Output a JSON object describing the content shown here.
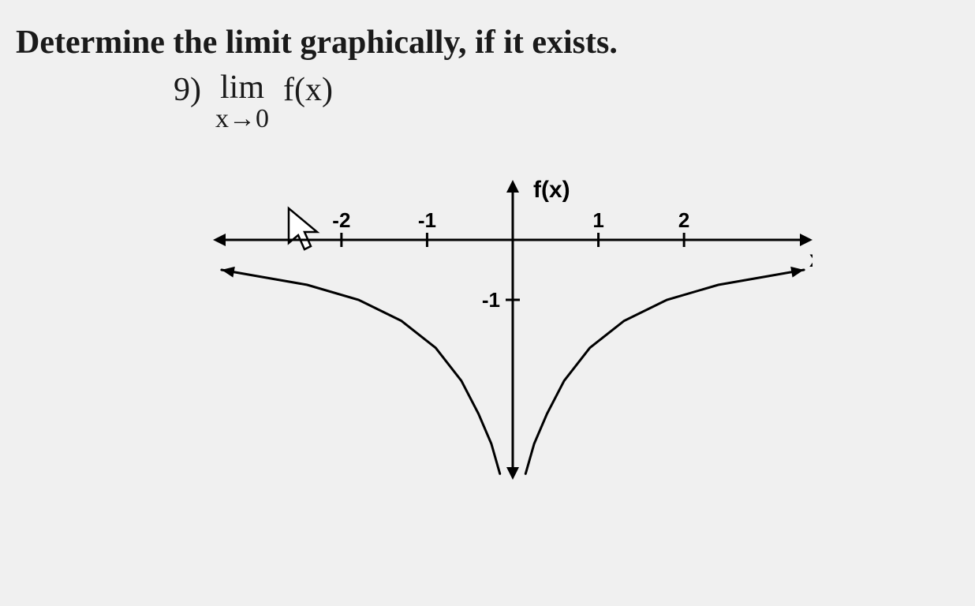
{
  "title": "Determine the limit graphically, if it exists.",
  "problem": {
    "number": "9)",
    "lim": "lim",
    "approach": "x→0",
    "func": "f(x)"
  },
  "graph": {
    "type": "function-curve",
    "y_label": "f(x)",
    "x_label": "x",
    "x_ticks": [
      -2,
      -1,
      1,
      2
    ],
    "y_ticks": [
      -1
    ],
    "x_range": [
      -3.5,
      3.5
    ],
    "y_range": [
      -4,
      1
    ],
    "colors": {
      "axis": "#000000",
      "curve": "#000000",
      "background": "#f0f0f0",
      "text": "#000000"
    },
    "stroke_width": {
      "axis": 3,
      "curve": 3,
      "tick": 3
    },
    "font": {
      "tick_size": 26,
      "label_size": 30,
      "weight": "bold"
    },
    "curve_left": [
      {
        "x": -3.4,
        "y": -0.5
      },
      {
        "x": -3.0,
        "y": -0.6
      },
      {
        "x": -2.4,
        "y": -0.75
      },
      {
        "x": -1.8,
        "y": -1.0
      },
      {
        "x": -1.3,
        "y": -1.35
      },
      {
        "x": -0.9,
        "y": -1.8
      },
      {
        "x": -0.6,
        "y": -2.35
      },
      {
        "x": -0.4,
        "y": -2.9
      },
      {
        "x": -0.25,
        "y": -3.4
      },
      {
        "x": -0.15,
        "y": -3.9
      }
    ],
    "curve_right": [
      {
        "x": 0.15,
        "y": -3.9
      },
      {
        "x": 0.25,
        "y": -3.4
      },
      {
        "x": 0.4,
        "y": -2.9
      },
      {
        "x": 0.6,
        "y": -2.35
      },
      {
        "x": 0.9,
        "y": -1.8
      },
      {
        "x": 1.3,
        "y": -1.35
      },
      {
        "x": 1.8,
        "y": -1.0
      },
      {
        "x": 2.4,
        "y": -0.75
      },
      {
        "x": 3.0,
        "y": -0.6
      },
      {
        "x": 3.4,
        "y": -0.5
      }
    ]
  }
}
